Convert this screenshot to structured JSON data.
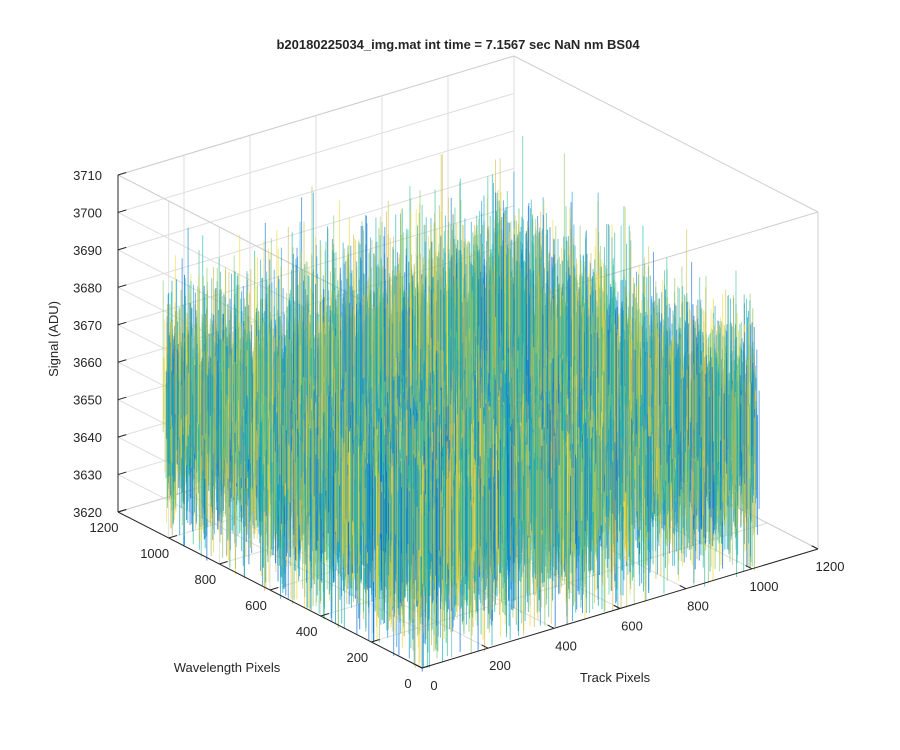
{
  "chart_data": {
    "type": "surface",
    "title": "b20180225034_img.mat int time = 7.1567 sec  NaN nm BS04",
    "xlabel": "Track Pixels",
    "ylabel": "Wavelength Pixels",
    "zlabel": "Signal (ADU)",
    "xlim": [
      0,
      1200
    ],
    "ylim": [
      0,
      1200
    ],
    "zlim": [
      3620,
      3710
    ],
    "x_ticks": [
      "0",
      "200",
      "400",
      "600",
      "800",
      "1000",
      "1200"
    ],
    "y_ticks": [
      "0",
      "200",
      "400",
      "600",
      "800",
      "1000",
      "1200"
    ],
    "z_ticks": [
      "3620",
      "3630",
      "3640",
      "3650",
      "3660",
      "3670",
      "3680",
      "3690",
      "3700",
      "3710"
    ],
    "data_extent": {
      "x": [
        0,
        1024
      ],
      "y": [
        0,
        1024
      ]
    },
    "mean_signal": 3655,
    "signal_range": [
      3625,
      3700
    ],
    "grid": true,
    "colormap": [
      "#0b6fd6",
      "#1598d3",
      "#18b0b5",
      "#3cbc93",
      "#8cc46a",
      "#d1be4a",
      "#f2d83a"
    ]
  }
}
